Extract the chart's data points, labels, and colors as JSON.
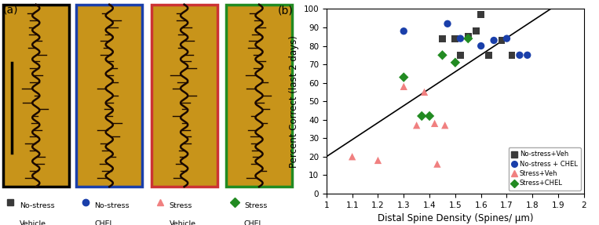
{
  "title_b": "(b)",
  "xlabel": "Distal Spine Density (Spines/ μm)",
  "ylabel": "Percent Correct (last 2 days)",
  "xlim": [
    1.0,
    2.0
  ],
  "ylim": [
    0,
    100
  ],
  "xticks": [
    1.0,
    1.1,
    1.2,
    1.3,
    1.4,
    1.5,
    1.6,
    1.7,
    1.8,
    1.9,
    2.0
  ],
  "yticks": [
    0,
    10,
    20,
    30,
    40,
    50,
    60,
    70,
    80,
    90,
    100
  ],
  "no_stress_veh": {
    "x": [
      1.45,
      1.5,
      1.52,
      1.55,
      1.58,
      1.6,
      1.63,
      1.68,
      1.72
    ],
    "y": [
      84,
      84,
      75,
      85,
      88,
      97,
      75,
      83,
      75
    ],
    "color": "#3a3a3a",
    "marker": "s",
    "size": 40,
    "label": "No-stress+Veh"
  },
  "no_stress_chel": {
    "x": [
      1.3,
      1.47,
      1.52,
      1.6,
      1.65,
      1.7,
      1.75,
      1.78
    ],
    "y": [
      88,
      92,
      84,
      80,
      83,
      84,
      75,
      75
    ],
    "color": "#1a3faa",
    "marker": "o",
    "size": 45,
    "label": "No-stress + CHEL"
  },
  "stress_veh": {
    "x": [
      1.1,
      1.2,
      1.3,
      1.35,
      1.38,
      1.42,
      1.43,
      1.46
    ],
    "y": [
      20,
      18,
      58,
      37,
      55,
      38,
      16,
      37
    ],
    "color": "#f08080",
    "marker": "^",
    "size": 45,
    "label": "Stress+Veh"
  },
  "stress_chel": {
    "x": [
      1.3,
      1.37,
      1.4,
      1.45,
      1.5,
      1.55
    ],
    "y": [
      63,
      42,
      42,
      75,
      71,
      84
    ],
    "color": "#228B22",
    "marker": "D",
    "size": 40,
    "label": "Stress+CHEL"
  },
  "regression_line": {
    "x": [
      1.0,
      1.87
    ],
    "y": [
      20,
      100
    ]
  },
  "panel_a_label": "(a)",
  "image_border_colors": [
    "#000000",
    "#1a3faa",
    "#cc3333",
    "#228B22"
  ],
  "image_bg_color": "#c8941a",
  "image_bg_dark": "#b07a10",
  "bottom_legend_items": [
    {
      "label1": "No-stress",
      "label2": "Vehicle",
      "color": "#3a3a3a",
      "marker": "s"
    },
    {
      "label1": "No-stress",
      "label2": "CHEL",
      "color": "#1a3faa",
      "marker": "o"
    },
    {
      "label1": "Stress",
      "label2": "Vehicle",
      "color": "#f08080",
      "marker": "^"
    },
    {
      "label1": "Stress",
      "label2": "CHEL",
      "color": "#228B22",
      "marker": "D"
    }
  ]
}
